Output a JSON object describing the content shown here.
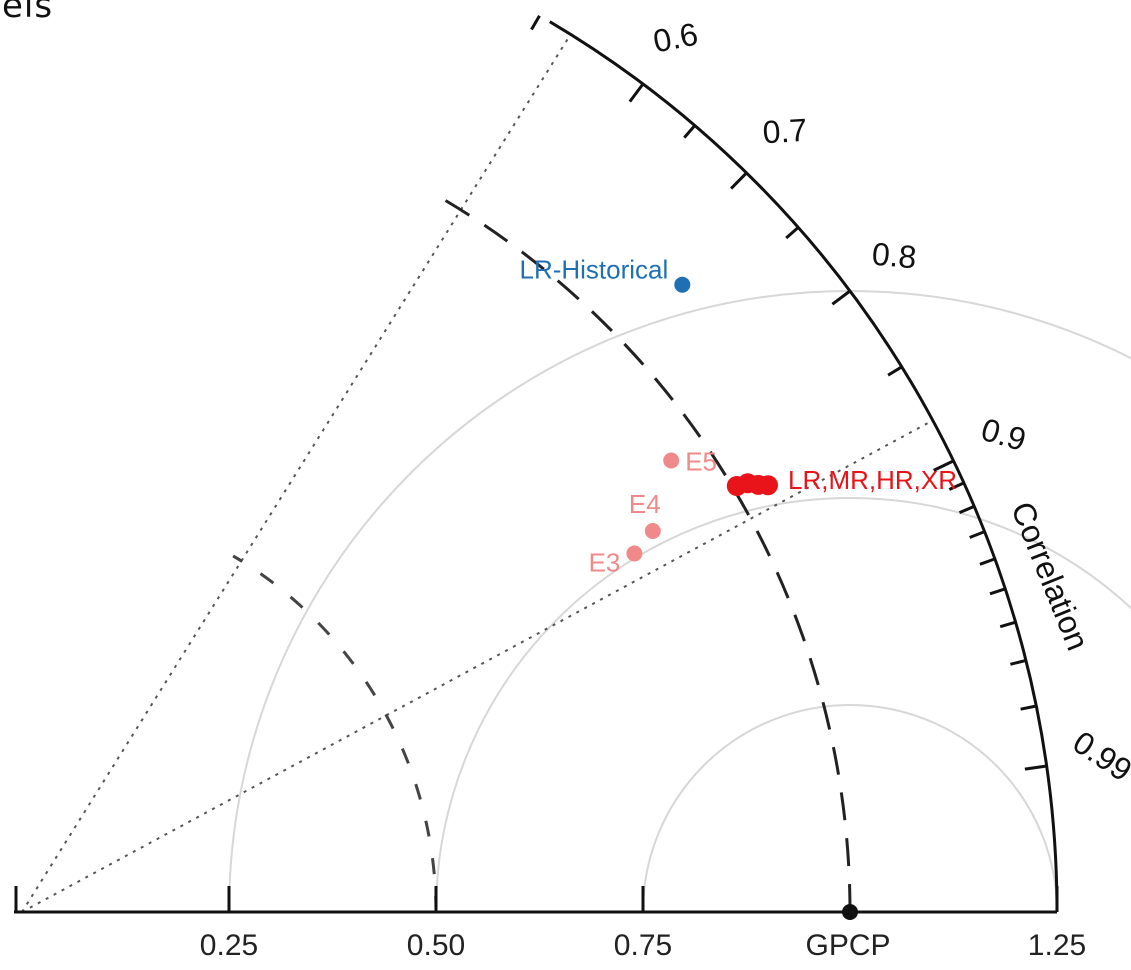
{
  "top_fragment": "els",
  "chart_data": {
    "type": "scatter",
    "subtype": "taylor-diagram",
    "title": "",
    "reference": {
      "label": "GPCP",
      "std": 1.0,
      "correlation": 1.0
    },
    "std_axis": {
      "ticks": [
        0.25,
        0.5,
        0.75,
        1.25
      ],
      "tick_labels": [
        "0.25",
        "0.50",
        "0.75",
        "1.25"
      ],
      "range": [
        0,
        1.25
      ]
    },
    "correlation_axis": {
      "label": "Correlation",
      "labeled_ticks": [
        0.6,
        0.7,
        0.8,
        0.9,
        0.99
      ],
      "tick_labels": [
        "0.6",
        "0.7",
        "0.8",
        "0.9",
        "0.99"
      ],
      "minor_ticks": [
        0.5,
        0.65,
        0.75,
        0.85,
        0.91,
        0.92,
        0.93,
        0.94,
        0.95,
        0.96,
        0.97,
        0.98
      ],
      "range": [
        0.51,
        1.0
      ]
    },
    "rms_arcs": [
      0.25,
      0.5,
      0.75
    ],
    "dashed_arcs": [
      0.5,
      1.0
    ],
    "dotted_rays": [
      0.53,
      0.88
    ],
    "points": [
      {
        "label": "LR-Historical",
        "std": 1.1,
        "correlation": 0.725,
        "color": "#1f6fb5"
      },
      {
        "label": "E5",
        "std": 0.955,
        "correlation": 0.821,
        "color": "#f08a8a"
      },
      {
        "label": "E4",
        "std": 0.89,
        "correlation": 0.856,
        "color": "#f08a8a"
      },
      {
        "label": "E3",
        "std": 0.857,
        "correlation": 0.863,
        "color": "#f08a8a"
      }
    ],
    "cluster": {
      "label": "LR,MR,HR,XR",
      "color": "#e8141a",
      "points": [
        {
          "std": 1.005,
          "correlation": 0.859
        },
        {
          "std": 1.018,
          "correlation": 0.861
        },
        {
          "std": 1.028,
          "correlation": 0.865
        },
        {
          "std": 1.038,
          "correlation": 0.868
        }
      ]
    },
    "colors": {
      "axis": "#111111",
      "grey_arc": "#d7d7d7",
      "historical": "#1f6fb5",
      "experiment": "#f08a8a",
      "resolution": "#e8141a"
    }
  }
}
